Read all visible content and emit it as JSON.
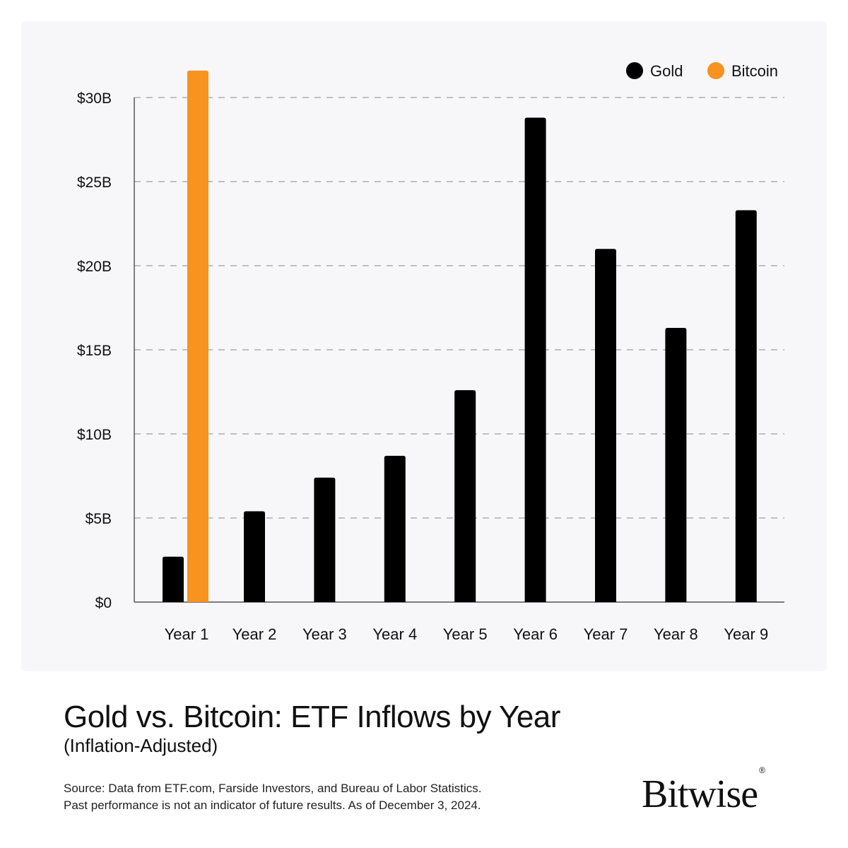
{
  "chart_data": {
    "type": "bar",
    "title": "Gold vs. Bitcoin: ETF Inflows by Year",
    "subtitle": "(Inflation-Adjusted)",
    "categories": [
      "Year 1",
      "Year 2",
      "Year 3",
      "Year 4",
      "Year 5",
      "Year 6",
      "Year 7",
      "Year 8",
      "Year 9"
    ],
    "series": [
      {
        "name": "Gold",
        "color": "#000000",
        "values": [
          2.7,
          5.4,
          7.4,
          8.7,
          12.6,
          28.8,
          21.0,
          16.3,
          23.3
        ]
      },
      {
        "name": "Bitcoin",
        "color": "#f7931e",
        "values": [
          31.6,
          null,
          null,
          null,
          null,
          null,
          null,
          null,
          null
        ]
      }
    ],
    "yticks": [
      0,
      5,
      10,
      15,
      20,
      25,
      30
    ],
    "ytick_labels": [
      "$0",
      "$5B",
      "$10B",
      "$15B",
      "$20B",
      "$25B",
      "$30B"
    ],
    "ylim": [
      0,
      30
    ],
    "xlabel": "",
    "ylabel": "",
    "grid": true,
    "legend_position": "top-right"
  },
  "footer": {
    "source_line1": "Source: Data from ETF.com, Farside Investors, and Bureau of Labor Statistics.",
    "source_line2": "Past performance is not an indicator of future results. As of December 3, 2024."
  },
  "brand": {
    "name": "Bitwise",
    "registered_mark": "®"
  }
}
